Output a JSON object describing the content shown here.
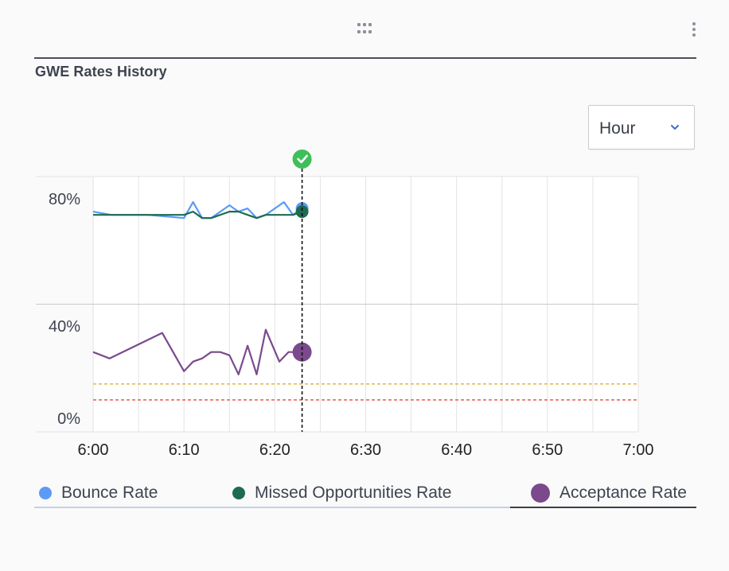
{
  "widget": {
    "title": "GWE Rates History",
    "drag_icon": "drag-grid-icon",
    "menu_icon": "kebab-menu-icon"
  },
  "range_select": {
    "value": "Hour",
    "icon": "chevron-down-icon"
  },
  "chart_data": {
    "type": "line",
    "x_ticks": [
      "6:00",
      "6:10",
      "6:20",
      "6:30",
      "6:40",
      "6:50",
      "7:00"
    ],
    "x_range_minutes": [
      0,
      60
    ],
    "y_ticks": [
      "0%",
      "40%",
      "80%"
    ],
    "ylim": [
      0,
      80
    ],
    "grid": true,
    "current_marker": {
      "time": "6:23",
      "status_icon": "check-circle-icon"
    },
    "threshold_lines": [
      {
        "value": 15,
        "color": "#e0b136",
        "style": "dashed"
      },
      {
        "value": 10,
        "color": "#e65a5a",
        "style": "dashed"
      }
    ],
    "series": [
      {
        "name": "Bounce Rate",
        "color": "#5b9bf5",
        "x": [
          0,
          2,
          6,
          10,
          11,
          12,
          13,
          15,
          16,
          17,
          18,
          19,
          21,
          22,
          23
        ],
        "y": [
          69,
          68,
          68,
          67,
          72,
          67,
          67,
          71,
          69,
          70,
          67,
          68,
          72,
          68,
          70
        ]
      },
      {
        "name": "Missed Opportunities Rate",
        "color": "#1e6b50",
        "x": [
          0,
          2,
          6,
          10,
          11,
          12,
          13,
          15,
          16,
          17,
          18,
          19,
          21,
          22,
          23
        ],
        "y": [
          68,
          68,
          68,
          68,
          69,
          67,
          67,
          69,
          69,
          68,
          67,
          68,
          68,
          68,
          69
        ]
      },
      {
        "name": "Acceptance Rate",
        "color": "#7a4a8c",
        "x": [
          0,
          1.8,
          7.6,
          10,
          11,
          12,
          13,
          14,
          15,
          16,
          17,
          18,
          19,
          20.5,
          21.5,
          22.5,
          23
        ],
        "y": [
          25,
          23,
          31,
          19,
          22,
          23,
          25,
          25,
          24,
          18,
          27,
          18,
          32,
          22,
          25,
          25,
          25
        ]
      }
    ]
  },
  "legend": [
    {
      "label": "Bounce Rate",
      "color": "#5b9bf5"
    },
    {
      "label": "Missed Opportunities Rate",
      "color": "#1e6b50"
    },
    {
      "label": "Acceptance Rate",
      "color": "#7a4a8c"
    }
  ]
}
